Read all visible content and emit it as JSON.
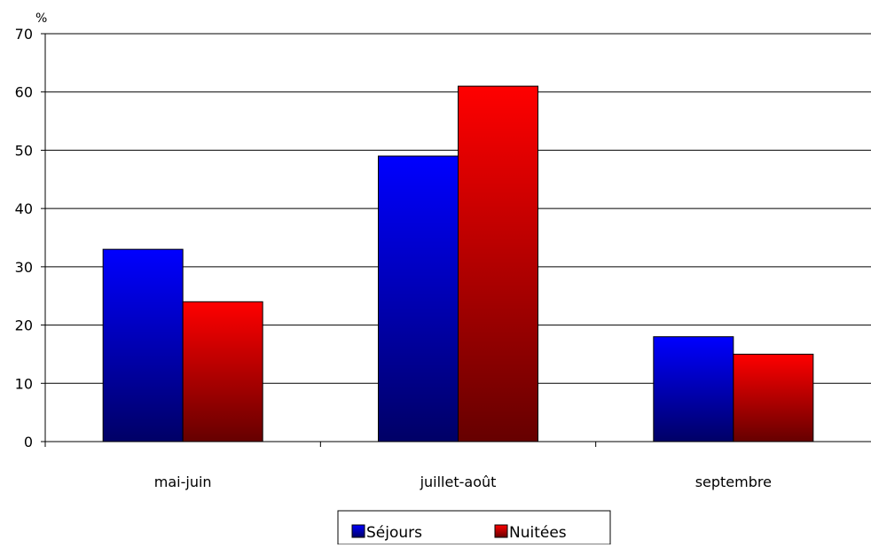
{
  "chart_data": {
    "type": "bar",
    "categories": [
      "mai-juin",
      "juillet-août",
      "septembre"
    ],
    "series": [
      {
        "name": "Séjours",
        "values": [
          33,
          49,
          18
        ],
        "color": "#0000ff",
        "color_dark": "#000066"
      },
      {
        "name": "Nuitées",
        "values": [
          24,
          61,
          15
        ],
        "color": "#ff0000",
        "color_dark": "#660000"
      }
    ],
    "ylabel": "%",
    "ylim": [
      0,
      70
    ],
    "yticks": [
      0,
      10,
      20,
      30,
      40,
      50,
      60,
      70
    ],
    "grid": true,
    "legend_position": "bottom"
  }
}
